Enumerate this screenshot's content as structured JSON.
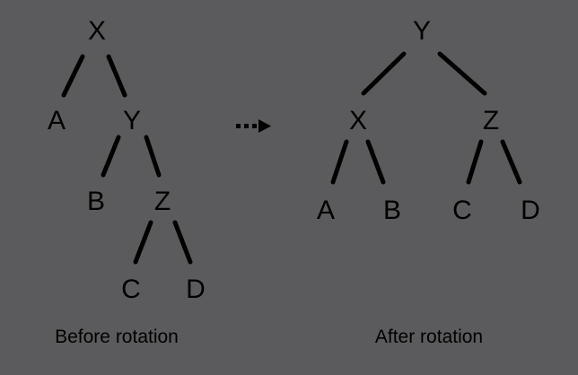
{
  "colors": {
    "background": "#5b5b5d",
    "ink": "#000000"
  },
  "before": {
    "caption": "Before rotation",
    "nodes": {
      "x": "X",
      "a": "A",
      "y": "Y",
      "b": "B",
      "z": "Z",
      "c": "C",
      "d": "D"
    }
  },
  "after": {
    "caption": "After rotation",
    "nodes": {
      "y": "Y",
      "x": "X",
      "z": "Z",
      "a": "A",
      "b": "B",
      "c": "C",
      "d": "D"
    }
  },
  "transition_icon": "dashed-arrow-icon"
}
